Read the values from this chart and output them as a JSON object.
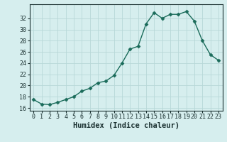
{
  "x": [
    0,
    1,
    2,
    3,
    4,
    5,
    6,
    7,
    8,
    9,
    10,
    11,
    12,
    13,
    14,
    15,
    16,
    17,
    18,
    19,
    20,
    21,
    22,
    23
  ],
  "y": [
    17.5,
    16.7,
    16.6,
    17.0,
    17.5,
    18.0,
    19.0,
    19.5,
    20.5,
    20.8,
    21.8,
    24.0,
    26.5,
    27.0,
    31.0,
    33.0,
    32.0,
    32.7,
    32.7,
    33.2,
    31.5,
    28.0,
    25.5,
    24.5
  ],
  "line_color": "#1a6b5a",
  "marker": "D",
  "marker_size": 2.5,
  "bg_color": "#d6eeee",
  "grid_color": "#b8d8d8",
  "xlabel": "Humidex (Indice chaleur)",
  "ylim": [
    15.5,
    34.5
  ],
  "xlim": [
    -0.5,
    23.5
  ],
  "yticks": [
    16,
    18,
    20,
    22,
    24,
    26,
    28,
    30,
    32
  ],
  "xticks": [
    0,
    1,
    2,
    3,
    4,
    5,
    6,
    7,
    8,
    9,
    10,
    11,
    12,
    13,
    14,
    15,
    16,
    17,
    18,
    19,
    20,
    21,
    22,
    23
  ],
  "xtick_labels": [
    "0",
    "1",
    "2",
    "3",
    "4",
    "5",
    "6",
    "7",
    "8",
    "9",
    "10",
    "11",
    "12",
    "13",
    "14",
    "15",
    "16",
    "17",
    "18",
    "19",
    "20",
    "21",
    "22",
    "23"
  ],
  "font_color": "#1a3030",
  "tick_fontsize": 6,
  "xlabel_fontsize": 7.5,
  "linewidth": 1.0
}
